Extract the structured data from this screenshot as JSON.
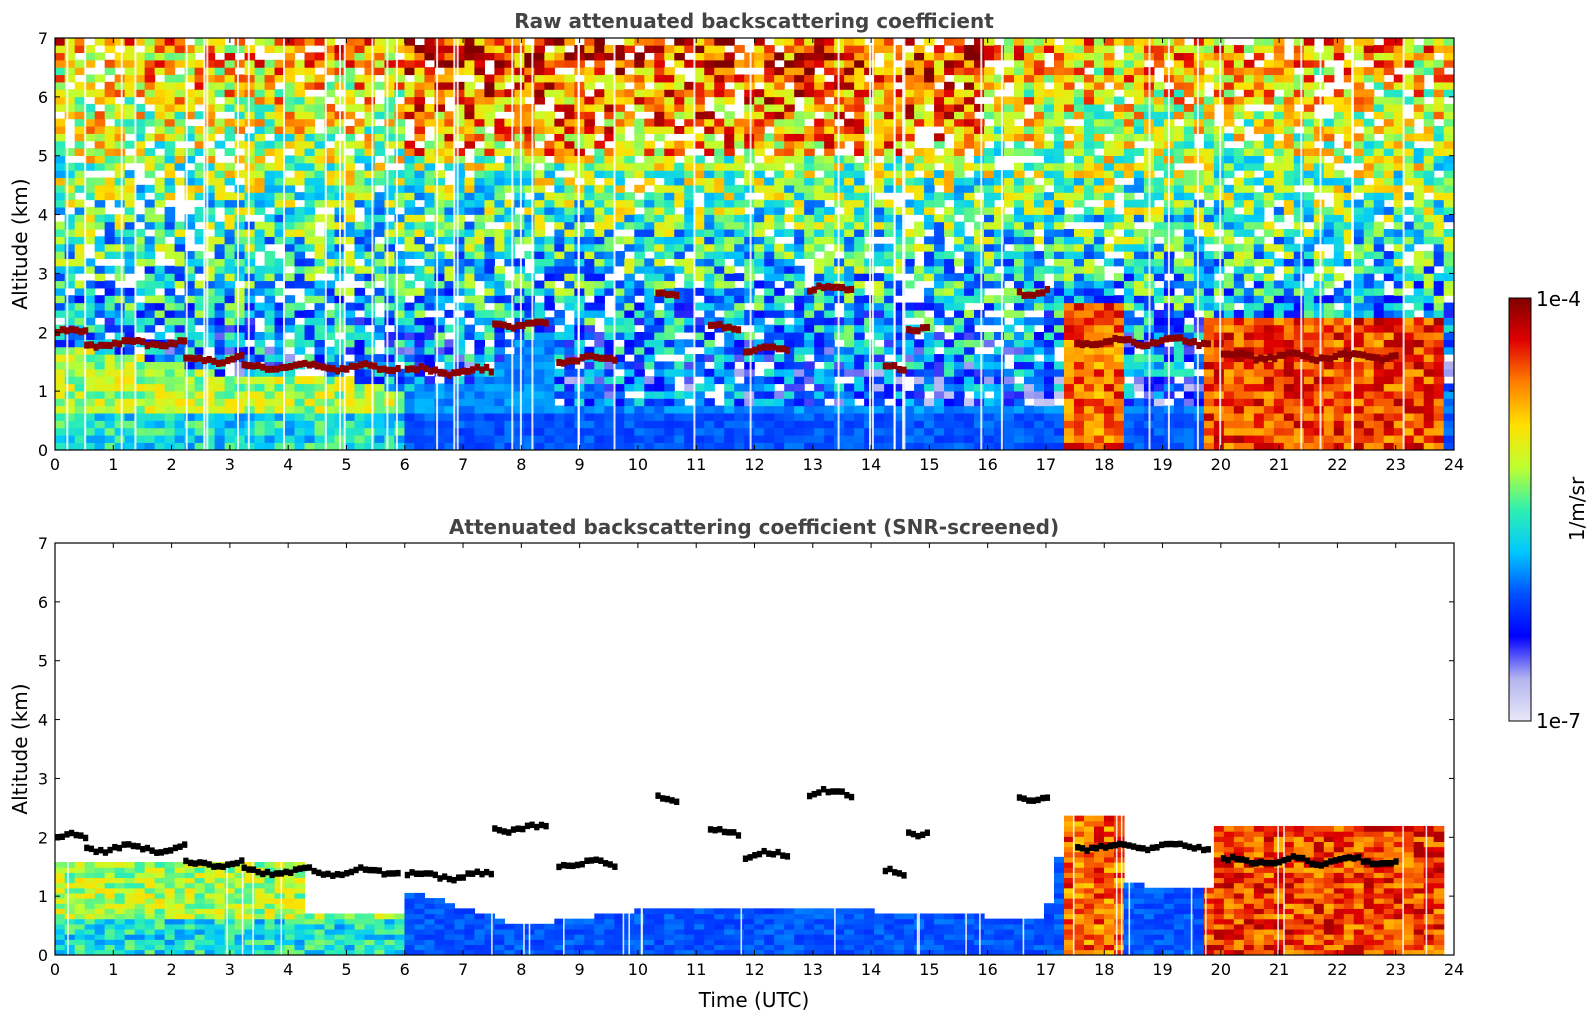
{
  "colors": {
    "scale": [
      "#e8e8f8",
      "#b4b4f0",
      "#0000ff",
      "#0050ff",
      "#00c8ff",
      "#30f0b0",
      "#c0ff30",
      "#ffe000",
      "#ff8000",
      "#e00000",
      "#800000"
    ],
    "cloud_top_color": "#000000"
  },
  "colorbar": {
    "min_label": "1e-7",
    "max_label": "1e-4",
    "unit_label": "1/m/sr",
    "scale": "log"
  },
  "chart_data": [
    {
      "type": "heatmap",
      "title": "Raw attenuated backscattering coefficient",
      "xlabel": "",
      "ylabel": "Altitude (km)",
      "xlim": [
        0,
        24
      ],
      "ylim": [
        0,
        7
      ],
      "x_ticks": [
        0,
        1,
        2,
        3,
        4,
        5,
        6,
        7,
        8,
        9,
        10,
        11,
        12,
        13,
        14,
        15,
        16,
        17,
        18,
        19,
        20,
        21,
        22,
        23,
        24
      ],
      "y_ticks": [
        0,
        1,
        2,
        3,
        4,
        5,
        6,
        7
      ],
      "colorbar_range": [
        1e-07,
        0.0001
      ],
      "colorbar_unit": "1/m/sr",
      "boundary_layer_top_km": [
        [
          0,
          2.0
        ],
        [
          1,
          1.85
        ],
        [
          2,
          1.7
        ],
        [
          3,
          1.45
        ],
        [
          4,
          1.4
        ],
        [
          5,
          1.4
        ],
        [
          6,
          1.2
        ],
        [
          7,
          1.35
        ],
        [
          7.5,
          1.5
        ],
        [
          8,
          2.1
        ],
        [
          8.5,
          2.2
        ]
      ],
      "aerosol_columns": [
        {
          "start": 0,
          "end": 6,
          "top_km": 1.6,
          "level": 0.6
        },
        {
          "start": 17.4,
          "end": 18.4,
          "top_km": 2.5,
          "level": 0.82
        },
        {
          "start": 19.8,
          "end": 23.9,
          "top_km": 2.2,
          "level": 0.85
        }
      ],
      "cloud_segments": [
        {
          "x0": 0,
          "x1": 0.5,
          "y": 2.0
        },
        {
          "x0": 0.5,
          "x1": 2.2,
          "y": 1.82
        },
        {
          "x0": 2.2,
          "x1": 3.2,
          "y": 1.55
        },
        {
          "x0": 3.2,
          "x1": 5.9,
          "y": 1.42
        },
        {
          "x0": 6.0,
          "x1": 7.5,
          "y": 1.35
        },
        {
          "x0": 7.5,
          "x1": 8.4,
          "y": 2.15
        },
        {
          "x0": 8.6,
          "x1": 9.6,
          "y": 1.55
        },
        {
          "x0": 10.3,
          "x1": 10.7,
          "y": 2.65
        },
        {
          "x0": 11.2,
          "x1": 11.7,
          "y": 2.1
        },
        {
          "x0": 11.8,
          "x1": 12.6,
          "y": 1.7
        },
        {
          "x0": 12.9,
          "x1": 13.7,
          "y": 2.75
        },
        {
          "x0": 14.2,
          "x1": 14.6,
          "y": 1.4
        },
        {
          "x0": 14.6,
          "x1": 15.0,
          "y": 2.1
        },
        {
          "x0": 16.5,
          "x1": 17.0,
          "y": 2.7
        },
        {
          "x0": 17.5,
          "x1": 19.8,
          "y": 1.85
        },
        {
          "x0": 20.0,
          "x1": 23.0,
          "y": 1.6
        }
      ]
    },
    {
      "type": "heatmap",
      "title": "Attenuated backscattering coefficient (SNR-screened)",
      "xlabel": "Time (UTC)",
      "ylabel": "Altitude (km)",
      "xlim": [
        0,
        24
      ],
      "ylim": [
        0,
        7
      ],
      "x_ticks": [
        0,
        1,
        2,
        3,
        4,
        5,
        6,
        7,
        8,
        9,
        10,
        11,
        12,
        13,
        14,
        15,
        16,
        17,
        18,
        19,
        20,
        21,
        22,
        23,
        24
      ],
      "y_ticks": [
        0,
        1,
        2,
        3,
        4,
        5,
        6,
        7
      ],
      "colorbar_range": [
        1e-07,
        0.0001
      ],
      "colorbar_unit": "1/m/sr",
      "screened_boundary_layer_km": [
        [
          0,
          1.6
        ],
        [
          4.3,
          1.6
        ],
        [
          4.3,
          0.7
        ],
        [
          6.0,
          0.7
        ],
        [
          6.0,
          1.1
        ],
        [
          8.0,
          0.5
        ],
        [
          10.0,
          0.75
        ],
        [
          14.0,
          0.75
        ],
        [
          17.0,
          0.6
        ],
        [
          17.4,
          2.4
        ],
        [
          18.4,
          2.4
        ],
        [
          18.4,
          1.2
        ],
        [
          19.8,
          1.1
        ],
        [
          19.8,
          2.2
        ],
        [
          23.9,
          2.2
        ]
      ]
    }
  ]
}
